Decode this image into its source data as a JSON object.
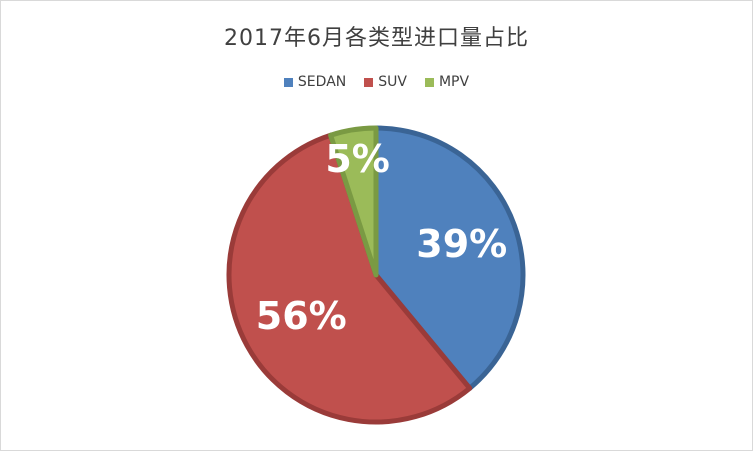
{
  "chart_data": {
    "type": "pie",
    "title": "2017年6月各类型进口量占比",
    "categories": [
      "SEDAN",
      "SUV",
      "MPV"
    ],
    "values": [
      39,
      56,
      5
    ],
    "labels": [
      "39%",
      "56%",
      "5%"
    ],
    "colors": [
      "#4F81BD",
      "#C0504D",
      "#9BBB59"
    ],
    "stroke_colors": [
      "#3A6495",
      "#9A3B39",
      "#7A9A43"
    ],
    "legend_position": "top"
  }
}
